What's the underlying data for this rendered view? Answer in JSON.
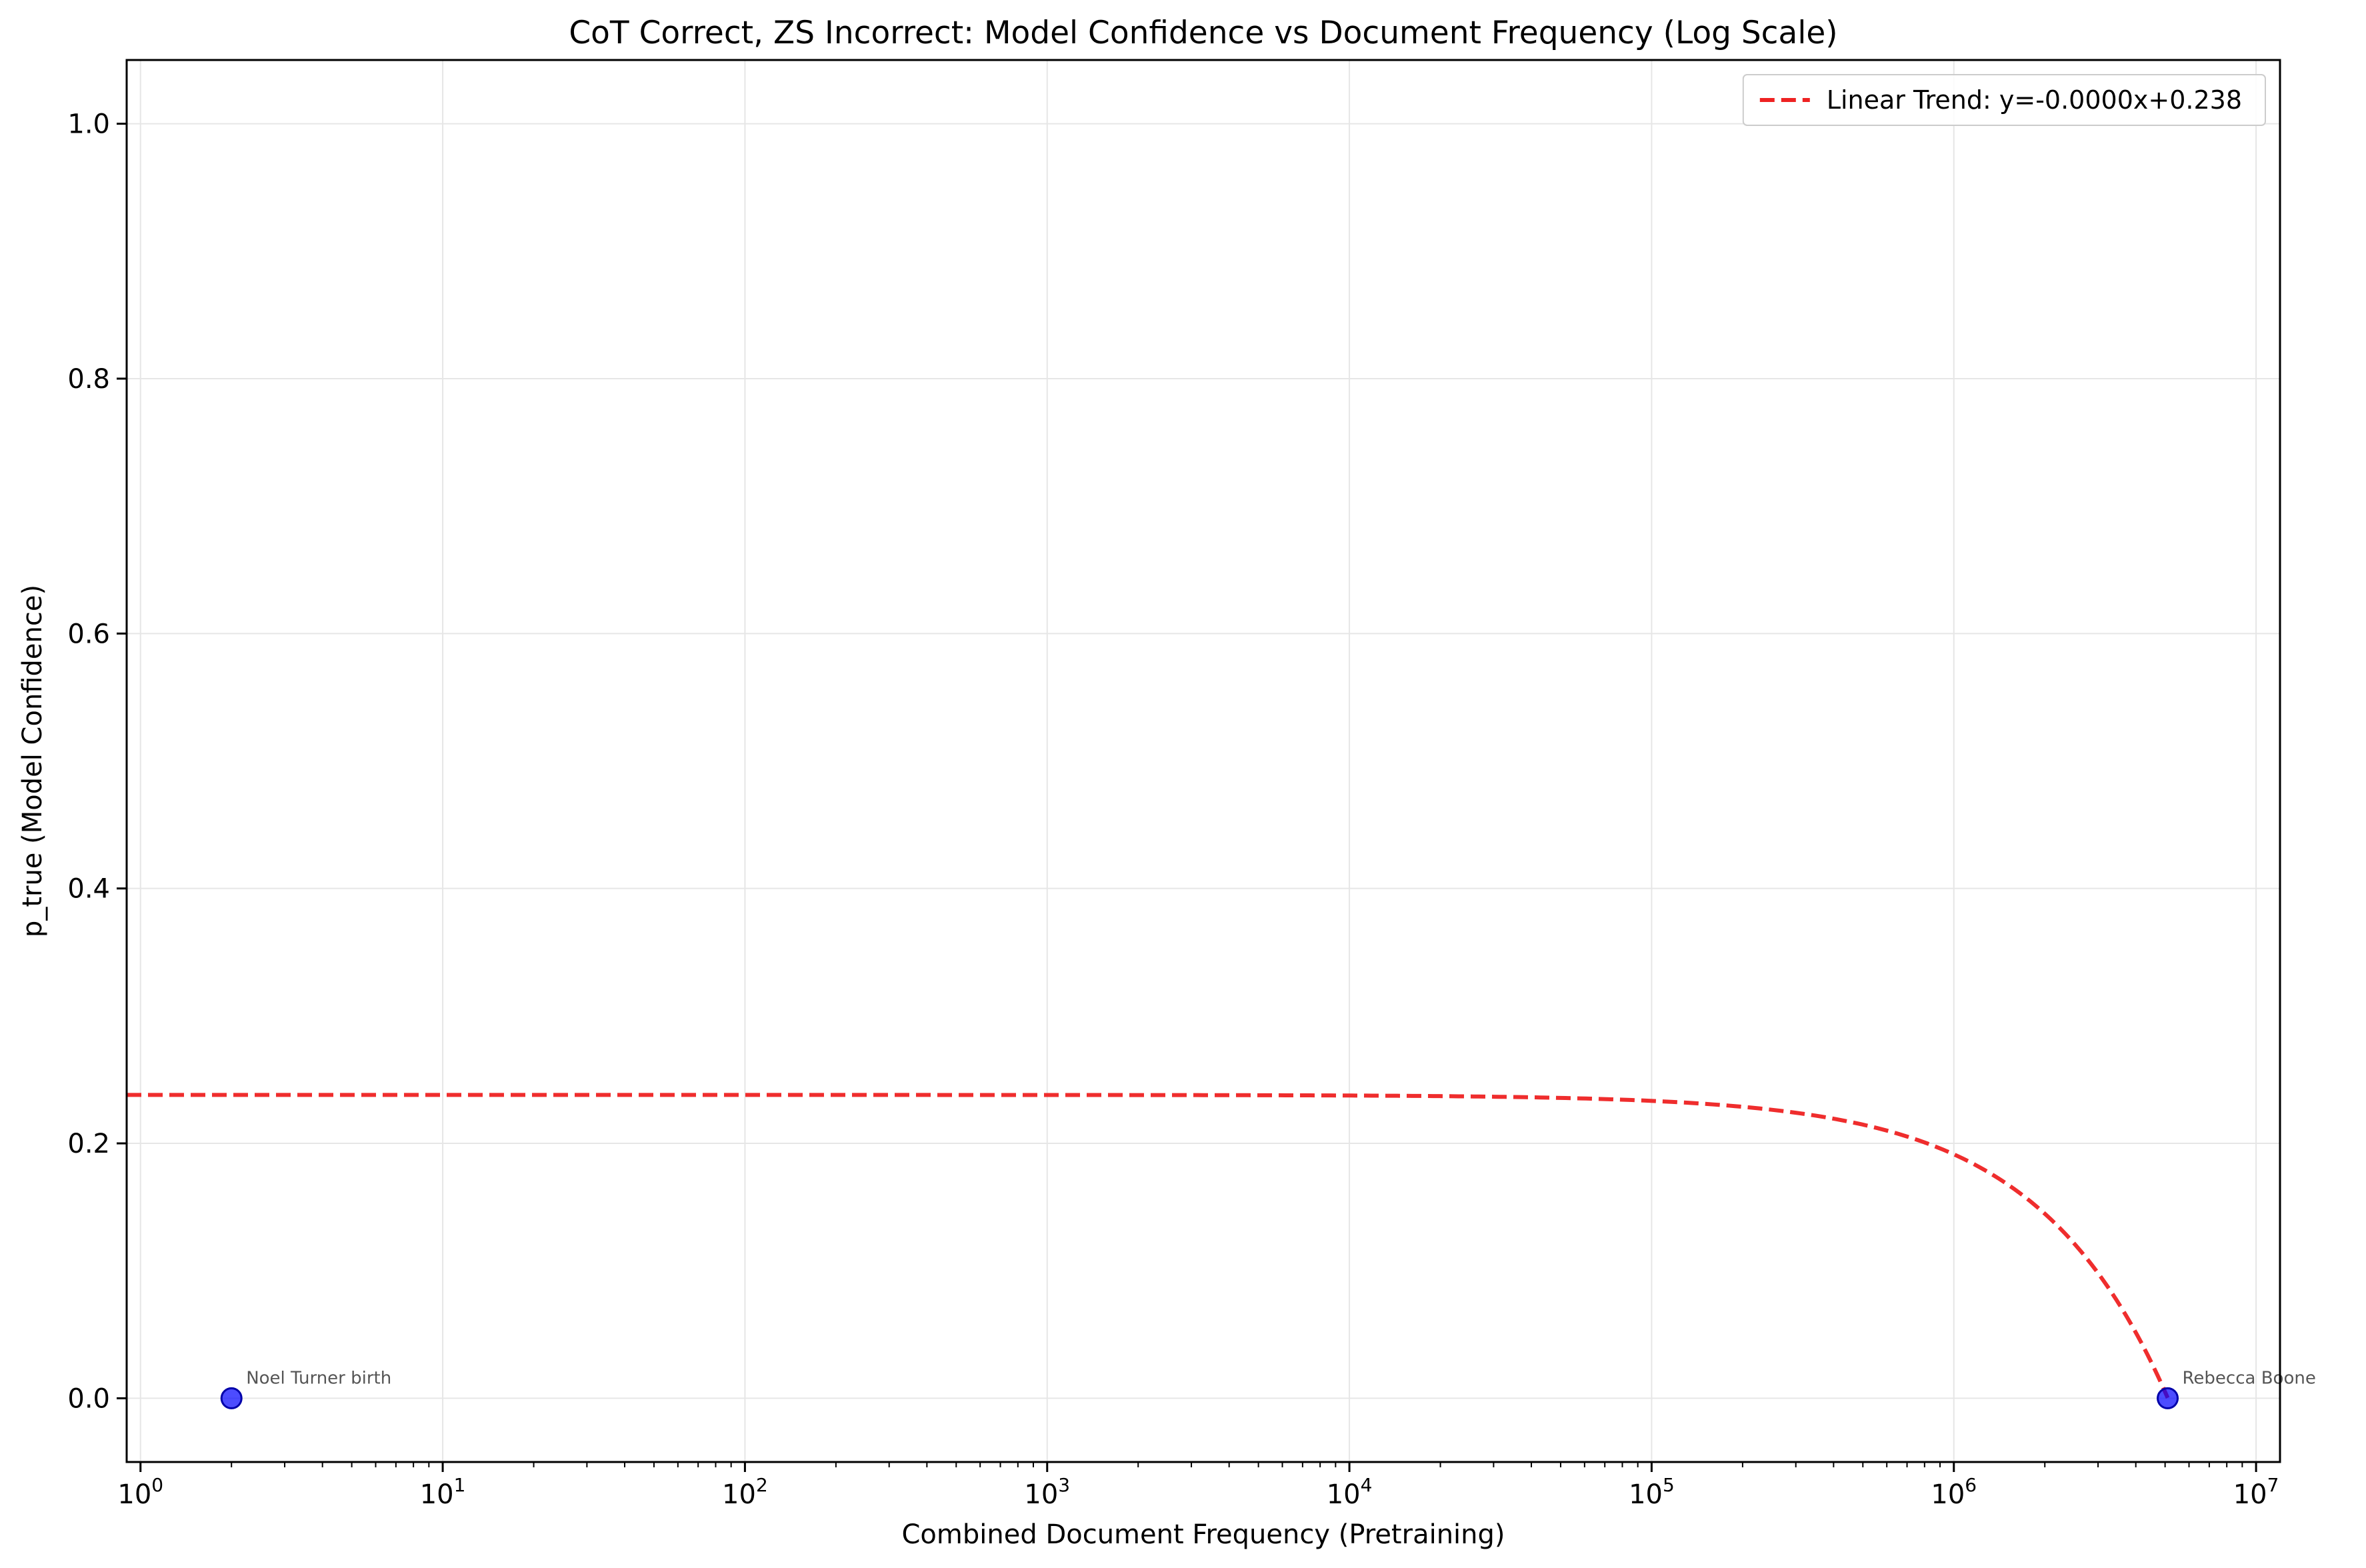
{
  "chart_data": {
    "type": "scatter",
    "title": "CoT Correct, ZS Incorrect: Model Confidence vs Document Frequency (Log Scale)",
    "xlabel": "Combined Document Frequency (Pretraining)",
    "ylabel": "p_true (Model Confidence)",
    "xscale": "log",
    "xlim": [
      0.9,
      12000000
    ],
    "ylim": [
      -0.05,
      1.05
    ],
    "x_ticks": [
      {
        "value": 1,
        "base": "10",
        "exp": "0"
      },
      {
        "value": 10,
        "base": "10",
        "exp": "1"
      },
      {
        "value": 100,
        "base": "10",
        "exp": "2"
      },
      {
        "value": 1000,
        "base": "10",
        "exp": "3"
      },
      {
        "value": 10000,
        "base": "10",
        "exp": "4"
      },
      {
        "value": 100000,
        "base": "10",
        "exp": "5"
      },
      {
        "value": 1000000,
        "base": "10",
        "exp": "6"
      },
      {
        "value": 10000000,
        "base": "10",
        "exp": "7"
      }
    ],
    "y_ticks": [
      {
        "value": 0.0,
        "label": "0.0"
      },
      {
        "value": 0.2,
        "label": "0.2"
      },
      {
        "value": 0.4,
        "label": "0.4"
      },
      {
        "value": 0.6,
        "label": "0.6"
      },
      {
        "value": 0.8,
        "label": "0.8"
      },
      {
        "value": 1.0,
        "label": "1.0"
      }
    ],
    "grid": true,
    "points": [
      {
        "x": 2,
        "y": 0.0,
        "label": "Noel Turner birth"
      },
      {
        "x": 5100000,
        "y": 0.0,
        "label": "Rebecca Boone"
      }
    ],
    "trend": {
      "slope": -4.66e-08,
      "intercept": 0.238,
      "legend_label": "Linear Trend: y=-0.0000x+0.238",
      "x_range": [
        0.9,
        5100000
      ]
    },
    "legend_position": "top-right",
    "colors": {
      "points": "#0000ff",
      "trend": "#ee2222",
      "grid": "#e6e6e6"
    }
  }
}
